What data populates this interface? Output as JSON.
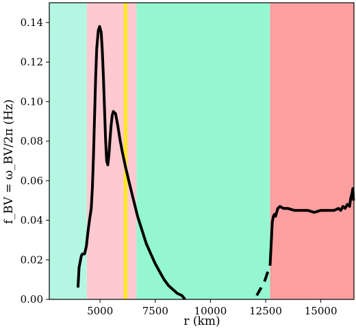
{
  "chart_data": {
    "type": "line",
    "xlabel": "r (km)",
    "ylabel": "f_BV = ω_BV/2π (Hz)",
    "xlim": [
      2700,
      16500
    ],
    "ylim": [
      0,
      0.15
    ],
    "x_ticks": [
      5000,
      7500,
      10000,
      12500,
      15000
    ],
    "x_tick_labels": [
      "5000",
      "7500",
      "10000",
      "12500",
      "15000"
    ],
    "y_ticks": [
      0.0,
      0.02,
      0.04,
      0.06,
      0.08,
      0.1,
      0.12,
      0.14
    ],
    "y_tick_labels": [
      "0.00",
      "0.02",
      "0.04",
      "0.06",
      "0.08",
      "0.10",
      "0.12",
      "0.14"
    ],
    "grid": false,
    "regions": [
      {
        "x0": 2700,
        "x1": 4400,
        "color": "#b3f7e3"
      },
      {
        "x0": 4400,
        "x1": 6650,
        "color": "#ffc9d1"
      },
      {
        "x0": 6650,
        "x1": 12700,
        "color": "#94f7d2"
      },
      {
        "x0": 12700,
        "x1": 16500,
        "color": "#ff9f9f"
      }
    ],
    "vlines": [
      {
        "x": 6150,
        "color": "#ffe81a"
      }
    ],
    "series": [
      {
        "color": "#000000",
        "segments": [
          [
            [
              4000,
              0.006
            ],
            [
              4050,
              0.016
            ],
            [
              4100,
              0.019
            ],
            [
              4150,
              0.022
            ],
            [
              4200,
              0.023
            ],
            [
              4300,
              0.023
            ],
            [
              4380,
              0.027
            ],
            [
              4450,
              0.034
            ],
            [
              4520,
              0.04
            ],
            [
              4600,
              0.046
            ],
            [
              4650,
              0.056
            ],
            [
              4700,
              0.072
            ],
            [
              4750,
              0.092
            ],
            [
              4800,
              0.112
            ],
            [
              4850,
              0.127
            ],
            [
              4920,
              0.136
            ],
            [
              4980,
              0.138
            ],
            [
              5050,
              0.135
            ],
            [
              5100,
              0.126
            ],
            [
              5150,
              0.113
            ],
            [
              5200,
              0.097
            ],
            [
              5250,
              0.081
            ],
            [
              5300,
              0.07
            ],
            [
              5350,
              0.068
            ],
            [
              5400,
              0.073
            ],
            [
              5450,
              0.081
            ],
            [
              5500,
              0.088
            ],
            [
              5550,
              0.093
            ],
            [
              5600,
              0.095
            ],
            [
              5700,
              0.094
            ],
            [
              5800,
              0.088
            ],
            [
              5900,
              0.081
            ],
            [
              6000,
              0.075
            ],
            [
              6150,
              0.067
            ],
            [
              6300,
              0.06
            ],
            [
              6500,
              0.051
            ],
            [
              6700,
              0.042
            ],
            [
              6900,
              0.035
            ],
            [
              7100,
              0.028
            ],
            [
              7300,
              0.023
            ],
            [
              7500,
              0.018
            ],
            [
              7700,
              0.014
            ],
            [
              7900,
              0.01
            ],
            [
              8100,
              0.007
            ],
            [
              8300,
              0.005
            ],
            [
              8500,
              0.003
            ],
            [
              8700,
              0.002
            ],
            [
              8850,
              0.0
            ]
          ],
          [
            [
              12100,
              0.002
            ],
            [
              12300,
              0.006
            ]
          ],
          [
            [
              12450,
              0.009
            ],
            [
              12600,
              0.014
            ]
          ],
          [
            [
              12700,
              0.017
            ],
            [
              12750,
              0.028
            ],
            [
              12800,
              0.039
            ],
            [
              12850,
              0.042
            ],
            [
              12900,
              0.043
            ],
            [
              12950,
              0.042
            ],
            [
              13000,
              0.044
            ],
            [
              13050,
              0.046
            ],
            [
              13150,
              0.047
            ],
            [
              13300,
              0.046
            ],
            [
              13500,
              0.046
            ],
            [
              13800,
              0.045
            ],
            [
              14100,
              0.045
            ],
            [
              14400,
              0.045
            ],
            [
              14700,
              0.044
            ],
            [
              15000,
              0.045
            ],
            [
              15300,
              0.045
            ],
            [
              15600,
              0.045
            ],
            [
              15800,
              0.046
            ],
            [
              15900,
              0.045
            ],
            [
              16000,
              0.047
            ],
            [
              16100,
              0.046
            ],
            [
              16200,
              0.048
            ],
            [
              16300,
              0.047
            ],
            [
              16350,
              0.051
            ],
            [
              16400,
              0.053
            ],
            [
              16450,
              0.056
            ],
            [
              16480,
              0.05
            ]
          ]
        ]
      }
    ]
  }
}
